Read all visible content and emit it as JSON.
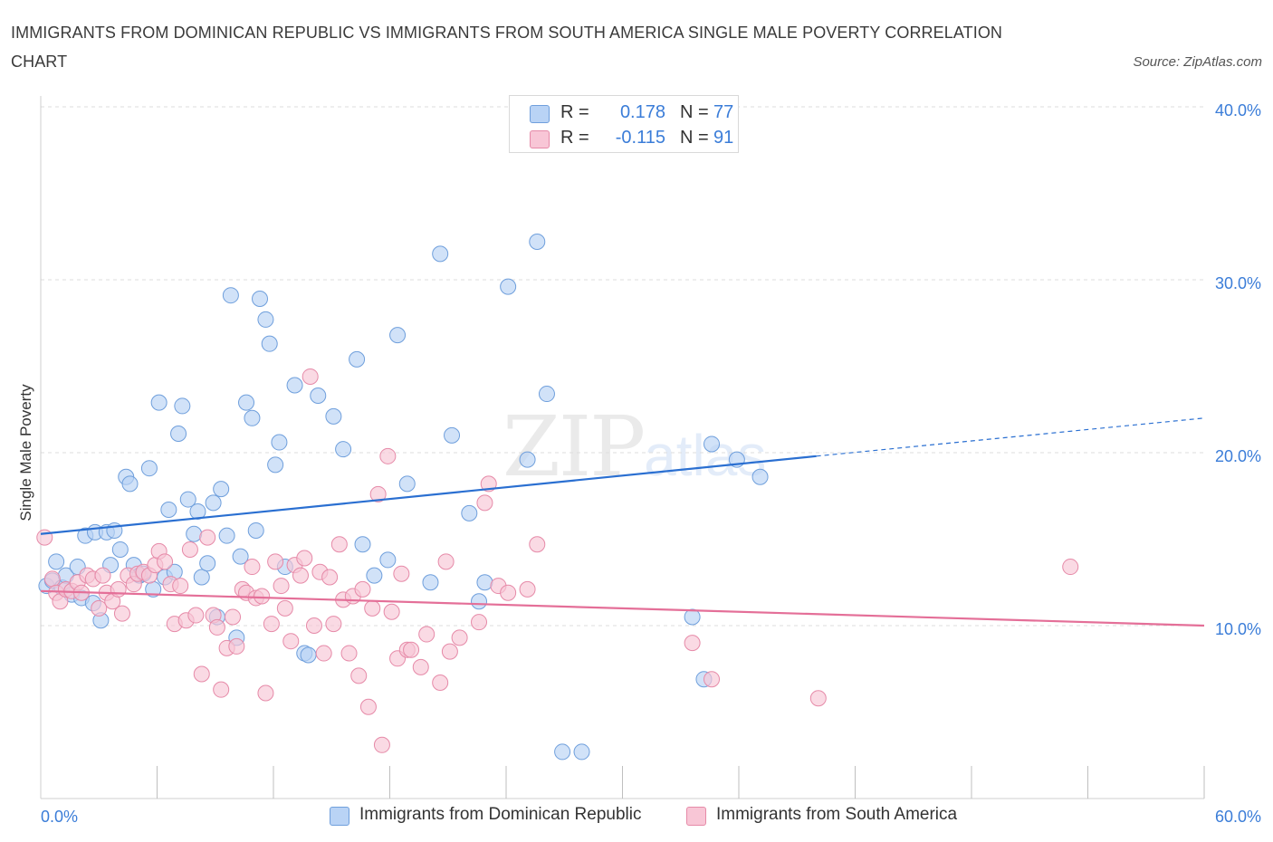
{
  "title": "IMMIGRANTS FROM DOMINICAN REPUBLIC VS IMMIGRANTS FROM SOUTH AMERICA SINGLE MALE POVERTY CORRELATION CHART",
  "source": "Source: ZipAtlas.com",
  "watermark": {
    "main": "ZIP",
    "sub": "atlas"
  },
  "colors": {
    "blue_fill": "#b9d3f5",
    "blue_stroke": "#6f9fdc",
    "blue_line": "#2a6fd1",
    "pink_fill": "#f8c6d6",
    "pink_stroke": "#e68aa8",
    "pink_line": "#e46f98",
    "tick_label": "#3b7dd8",
    "grid": "#dddddd"
  },
  "legend": {
    "r_label": "R =",
    "n_label": "N =",
    "series": [
      {
        "r": "0.178",
        "n": "77"
      },
      {
        "r": "-0.115",
        "n": "91"
      }
    ]
  },
  "chart_data": {
    "type": "scatter",
    "xlabel": "",
    "ylabel": "Single Male Poverty",
    "xlim": [
      0,
      60
    ],
    "ylim": [
      0,
      40
    ],
    "x_tick_labels": [
      {
        "value": 0,
        "label": "0.0%"
      },
      {
        "value": 60,
        "label": "60.0%"
      }
    ],
    "y_tick_labels": [
      {
        "value": 10,
        "label": "10.0%"
      },
      {
        "value": 20,
        "label": "20.0%"
      },
      {
        "value": 30,
        "label": "30.0%"
      },
      {
        "value": 40,
        "label": "40.0%"
      }
    ],
    "x_minor_ticks": [
      6,
      12,
      18,
      24,
      30,
      36,
      42,
      48,
      54,
      60
    ],
    "y_grid": [
      10,
      20,
      30,
      40
    ],
    "series": [
      {
        "name": "Immigrants from Dominican Republic",
        "color": "blue",
        "trend": {
          "x": [
            0,
            40
          ],
          "y": [
            15.3,
            19.8
          ],
          "dash_to": [
            60,
            22.0
          ]
        },
        "points": [
          [
            0.3,
            12.3
          ],
          [
            0.6,
            12.6
          ],
          [
            0.8,
            13.7
          ],
          [
            1.1,
            12.2
          ],
          [
            1.3,
            12.9
          ],
          [
            1.6,
            11.8
          ],
          [
            1.9,
            13.4
          ],
          [
            2.1,
            11.6
          ],
          [
            2.3,
            15.2
          ],
          [
            2.7,
            11.3
          ],
          [
            2.8,
            15.4
          ],
          [
            3.1,
            10.3
          ],
          [
            3.4,
            15.4
          ],
          [
            3.6,
            13.5
          ],
          [
            3.8,
            15.5
          ],
          [
            4.1,
            14.4
          ],
          [
            4.4,
            18.6
          ],
          [
            4.6,
            18.2
          ],
          [
            4.8,
            13.5
          ],
          [
            5.1,
            12.9
          ],
          [
            5.3,
            13.0
          ],
          [
            5.6,
            19.1
          ],
          [
            5.8,
            12.1
          ],
          [
            6.1,
            22.9
          ],
          [
            6.4,
            12.8
          ],
          [
            6.6,
            16.7
          ],
          [
            6.9,
            13.1
          ],
          [
            7.1,
            21.1
          ],
          [
            7.3,
            22.7
          ],
          [
            7.6,
            17.3
          ],
          [
            7.9,
            15.3
          ],
          [
            8.1,
            16.6
          ],
          [
            8.3,
            12.8
          ],
          [
            8.6,
            13.6
          ],
          [
            8.9,
            17.1
          ],
          [
            9.1,
            10.5
          ],
          [
            9.3,
            17.9
          ],
          [
            9.6,
            15.2
          ],
          [
            9.8,
            29.1
          ],
          [
            10.1,
            9.3
          ],
          [
            10.3,
            14.0
          ],
          [
            10.6,
            22.9
          ],
          [
            10.9,
            22.0
          ],
          [
            11.1,
            15.5
          ],
          [
            11.3,
            28.9
          ],
          [
            11.6,
            27.7
          ],
          [
            11.8,
            26.3
          ],
          [
            12.1,
            19.3
          ],
          [
            12.3,
            20.6
          ],
          [
            12.6,
            13.4
          ],
          [
            13.1,
            23.9
          ],
          [
            13.6,
            8.4
          ],
          [
            13.8,
            8.3
          ],
          [
            14.3,
            23.3
          ],
          [
            15.1,
            22.1
          ],
          [
            15.6,
            20.2
          ],
          [
            16.3,
            25.4
          ],
          [
            16.6,
            14.7
          ],
          [
            17.2,
            12.9
          ],
          [
            17.9,
            13.8
          ],
          [
            18.4,
            26.8
          ],
          [
            18.9,
            18.2
          ],
          [
            20.1,
            12.5
          ],
          [
            20.6,
            31.5
          ],
          [
            21.2,
            21.0
          ],
          [
            22.1,
            16.5
          ],
          [
            22.6,
            11.4
          ],
          [
            22.9,
            12.5
          ],
          [
            24.1,
            29.6
          ],
          [
            25.1,
            19.6
          ],
          [
            25.6,
            32.2
          ],
          [
            26.1,
            23.4
          ],
          [
            26.9,
            2.7
          ],
          [
            27.9,
            2.7
          ],
          [
            33.6,
            10.5
          ],
          [
            34.2,
            6.9
          ],
          [
            34.6,
            20.5
          ],
          [
            35.9,
            19.6
          ],
          [
            37.1,
            18.6
          ]
        ]
      },
      {
        "name": "Immigrants from South America",
        "color": "pink",
        "trend": {
          "x": [
            0,
            60
          ],
          "y": [
            12.0,
            10.0
          ]
        },
        "points": [
          [
            0.2,
            15.1
          ],
          [
            0.6,
            12.7
          ],
          [
            0.8,
            11.9
          ],
          [
            1.0,
            11.4
          ],
          [
            1.3,
            12.1
          ],
          [
            1.6,
            12.0
          ],
          [
            1.9,
            12.5
          ],
          [
            2.1,
            11.9
          ],
          [
            2.4,
            12.9
          ],
          [
            2.7,
            12.7
          ],
          [
            3.0,
            11.0
          ],
          [
            3.2,
            12.9
          ],
          [
            3.4,
            11.9
          ],
          [
            3.7,
            11.4
          ],
          [
            4.0,
            12.1
          ],
          [
            4.2,
            10.7
          ],
          [
            4.5,
            12.9
          ],
          [
            4.8,
            12.4
          ],
          [
            5.0,
            13.0
          ],
          [
            5.3,
            13.1
          ],
          [
            5.6,
            12.9
          ],
          [
            5.9,
            13.5
          ],
          [
            6.1,
            14.3
          ],
          [
            6.4,
            13.7
          ],
          [
            6.7,
            12.4
          ],
          [
            6.9,
            10.1
          ],
          [
            7.2,
            12.3
          ],
          [
            7.5,
            10.3
          ],
          [
            7.7,
            14.4
          ],
          [
            8.0,
            10.6
          ],
          [
            8.3,
            7.2
          ],
          [
            8.6,
            15.1
          ],
          [
            8.9,
            10.6
          ],
          [
            9.1,
            9.9
          ],
          [
            9.3,
            6.3
          ],
          [
            9.6,
            8.7
          ],
          [
            9.9,
            10.5
          ],
          [
            10.1,
            8.8
          ],
          [
            10.4,
            12.1
          ],
          [
            10.6,
            11.9
          ],
          [
            10.9,
            13.4
          ],
          [
            11.1,
            11.6
          ],
          [
            11.4,
            11.7
          ],
          [
            11.6,
            6.1
          ],
          [
            11.9,
            10.1
          ],
          [
            12.1,
            13.7
          ],
          [
            12.4,
            12.3
          ],
          [
            12.6,
            11.0
          ],
          [
            12.9,
            9.1
          ],
          [
            13.1,
            13.5
          ],
          [
            13.4,
            12.9
          ],
          [
            13.6,
            13.9
          ],
          [
            13.9,
            24.4
          ],
          [
            14.1,
            10.0
          ],
          [
            14.4,
            13.1
          ],
          [
            14.6,
            8.4
          ],
          [
            14.9,
            12.8
          ],
          [
            15.1,
            10.1
          ],
          [
            15.4,
            14.7
          ],
          [
            15.6,
            11.5
          ],
          [
            15.9,
            8.4
          ],
          [
            16.1,
            11.7
          ],
          [
            16.4,
            7.1
          ],
          [
            16.6,
            12.1
          ],
          [
            16.9,
            5.3
          ],
          [
            17.1,
            11.0
          ],
          [
            17.4,
            17.6
          ],
          [
            17.6,
            3.1
          ],
          [
            17.9,
            19.8
          ],
          [
            18.1,
            10.8
          ],
          [
            18.4,
            8.1
          ],
          [
            18.6,
            13.0
          ],
          [
            18.9,
            8.6
          ],
          [
            19.1,
            8.6
          ],
          [
            19.6,
            7.6
          ],
          [
            19.9,
            9.5
          ],
          [
            20.6,
            6.7
          ],
          [
            20.9,
            13.7
          ],
          [
            21.1,
            8.5
          ],
          [
            21.6,
            9.3
          ],
          [
            22.6,
            10.2
          ],
          [
            22.9,
            17.1
          ],
          [
            23.1,
            18.2
          ],
          [
            23.6,
            12.3
          ],
          [
            24.1,
            11.9
          ],
          [
            25.1,
            12.1
          ],
          [
            25.6,
            14.7
          ],
          [
            33.6,
            9.0
          ],
          [
            34.6,
            6.9
          ],
          [
            40.1,
            5.8
          ],
          [
            53.1,
            13.4
          ]
        ]
      }
    ]
  },
  "bottom_legend": [
    {
      "label": "Immigrants from Dominican Republic"
    },
    {
      "label": "Immigrants from South America"
    }
  ]
}
